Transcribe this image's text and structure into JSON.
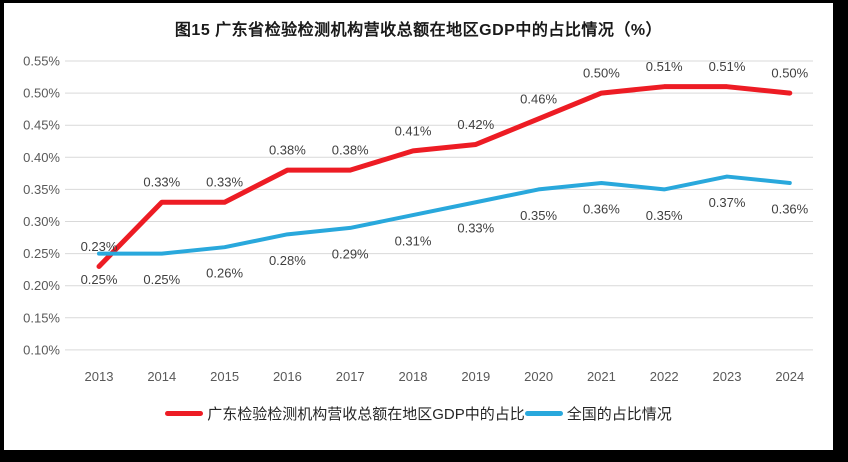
{
  "title": "图15  广东省检验检测机构营收总额在地区GDP中的占比情况（%）",
  "chart_data": {
    "type": "line",
    "x": [
      "2013",
      "2014",
      "2015",
      "2016",
      "2017",
      "2018",
      "2019",
      "2020",
      "2021",
      "2022",
      "2023",
      "2024"
    ],
    "series": [
      {
        "name": "广东检验检测机构营收总额在地区GDP中的占比",
        "color": "#ED1C24",
        "values": [
          0.23,
          0.33,
          0.33,
          0.38,
          0.38,
          0.41,
          0.42,
          0.46,
          0.5,
          0.51,
          0.51,
          0.5
        ],
        "labels": [
          "0.23%",
          "0.33%",
          "0.33%",
          "0.38%",
          "0.38%",
          "0.41%",
          "0.42%",
          "0.46%",
          "0.50%",
          "0.51%",
          "0.51%",
          "0.50%"
        ],
        "label_position": "above"
      },
      {
        "name": "全国的占比情况",
        "color": "#29A8DC",
        "values": [
          0.25,
          0.25,
          0.26,
          0.28,
          0.29,
          0.31,
          0.33,
          0.35,
          0.36,
          0.35,
          0.37,
          0.36
        ],
        "labels": [
          "0.25%",
          "0.25%",
          "0.26%",
          "0.28%",
          "0.29%",
          "0.31%",
          "0.33%",
          "0.35%",
          "0.36%",
          "0.35%",
          "0.37%",
          "0.36%"
        ],
        "label_position": "below"
      }
    ],
    "xlabel": "",
    "ylabel": "",
    "ylim": [
      0.1,
      0.55
    ],
    "ytick_step": 0.05,
    "ytick_labels": [
      "0.10%",
      "0.15%",
      "0.20%",
      "0.25%",
      "0.30%",
      "0.35%",
      "0.40%",
      "0.45%",
      "0.50%",
      "0.55%"
    ],
    "grid": "horizontal",
    "grid_color": "#D9D9D9",
    "axis_label_color": "#595959",
    "data_label_color": "#404040",
    "legend_position": "bottom",
    "frame_color": "#000000",
    "background_color": "#FFFFFF"
  }
}
